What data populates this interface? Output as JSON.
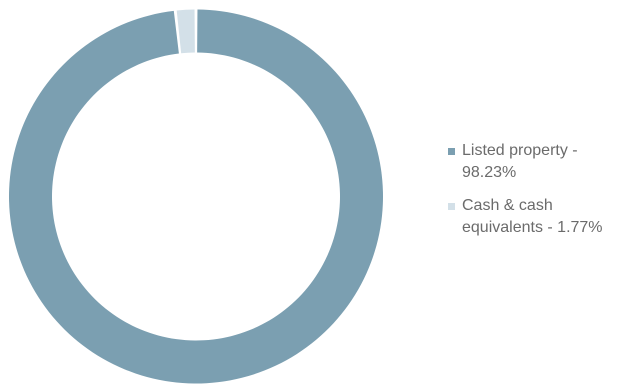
{
  "chart_data": {
    "type": "pie",
    "variant": "donut",
    "categories": [
      "Listed property",
      "Cash & cash equivalents"
    ],
    "values": [
      98.23,
      1.77
    ],
    "unit": "%",
    "colors": [
      "#7b9fb1",
      "#d3e0e8"
    ],
    "legend_labels": [
      "Listed property - 98.23%",
      "Cash & cash equivalents - 1.77%"
    ],
    "legend_position": "right",
    "title": ""
  }
}
